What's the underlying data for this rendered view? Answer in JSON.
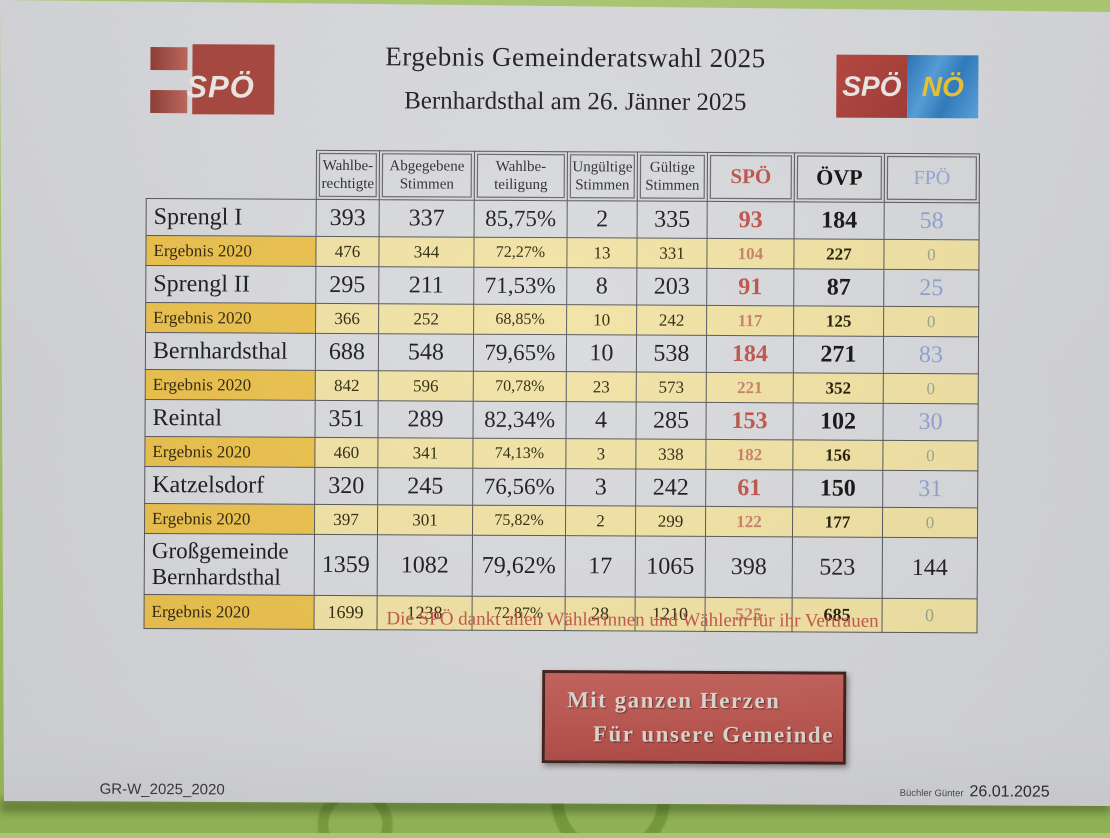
{
  "page": {
    "title_line1": "Ergebnis Gemeinderatswahl 2025",
    "title_line2": "Bernhardsthal am 26. Jänner 2025",
    "thanks_line": "Die SPÖ dankt allen Wählerinnen und Wählern für ihr Vertrauen",
    "banner_line1": "Mit ganzen Herzen",
    "banner_line2": "Für unsere Gemeinde",
    "footer_left": "GR-W_2025_2020",
    "footer_right_name": "Büchler Günter",
    "footer_right_date": "26.01.2025"
  },
  "logos": {
    "spoe_label": "SPÖ",
    "spoe_noe_left": "SPÖ",
    "spoe_noe_right": "NÖ"
  },
  "colors": {
    "spoe_red": "#bf544c",
    "oevp_black": "#161616",
    "fpoe_blue": "#8fa3d2",
    "highlight_label_yellow": "#ecc24e",
    "highlight_value_yellow": "#f2e3a4",
    "banner_red": "#bd5751",
    "tablecloth_green": "#9cba60"
  },
  "table": {
    "headers": [
      {
        "l1": "Wahlbe-",
        "l2": "rechtigte"
      },
      {
        "l1": "Abgegebene",
        "l2": "Stimmen"
      },
      {
        "l1": "Wahlbe-",
        "l2": "teiligung"
      },
      {
        "l1": "Ungültige",
        "l2": "Stimmen"
      },
      {
        "l1": "Gültige",
        "l2": "Stimmen"
      },
      {
        "l1": "SPÖ",
        "l2": ""
      },
      {
        "l1": "ÖVP",
        "l2": ""
      },
      {
        "l1": "FPÖ",
        "l2": ""
      }
    ],
    "rows": [
      {
        "label": "Sprengl I",
        "type": "cur",
        "values": [
          "393",
          "337",
          "85,75%",
          "2",
          "335",
          "93",
          "184",
          "58"
        ]
      },
      {
        "label": "Ergebnis 2020",
        "type": "prev",
        "values": [
          "476",
          "344",
          "72,27%",
          "13",
          "331",
          "104",
          "227",
          "0"
        ]
      },
      {
        "label": "Sprengl II",
        "type": "cur",
        "values": [
          "295",
          "211",
          "71,53%",
          "8",
          "203",
          "91",
          "87",
          "25"
        ]
      },
      {
        "label": "Ergebnis 2020",
        "type": "prev",
        "values": [
          "366",
          "252",
          "68,85%",
          "10",
          "242",
          "117",
          "125",
          "0"
        ]
      },
      {
        "label": "Bernhardsthal",
        "type": "cur",
        "values": [
          "688",
          "548",
          "79,65%",
          "10",
          "538",
          "184",
          "271",
          "83"
        ]
      },
      {
        "label": "Ergebnis 2020",
        "type": "prev",
        "values": [
          "842",
          "596",
          "70,78%",
          "23",
          "573",
          "221",
          "352",
          "0"
        ]
      },
      {
        "label": "Reintal",
        "type": "cur",
        "values": [
          "351",
          "289",
          "82,34%",
          "4",
          "285",
          "153",
          "102",
          "30"
        ]
      },
      {
        "label": "Ergebnis 2020",
        "type": "prev",
        "values": [
          "460",
          "341",
          "74,13%",
          "3",
          "338",
          "182",
          "156",
          "0"
        ]
      },
      {
        "label": "Katzelsdorf",
        "type": "cur",
        "values": [
          "320",
          "245",
          "76,56%",
          "3",
          "242",
          "61",
          "150",
          "31"
        ]
      },
      {
        "label": "Ergebnis 2020",
        "type": "prev",
        "values": [
          "397",
          "301",
          "75,82%",
          "2",
          "299",
          "122",
          "177",
          "0"
        ]
      },
      {
        "label": "Großgemeinde Bernhardsthal",
        "type": "total",
        "values": [
          "1359",
          "1082",
          "79,62%",
          "17",
          "1065",
          "398",
          "523",
          "144"
        ]
      },
      {
        "label": "Ergebnis 2020",
        "type": "prev last",
        "values": [
          "1699",
          "1238",
          "72,87%",
          "28",
          "1210",
          "525",
          "685",
          "0"
        ]
      }
    ]
  }
}
